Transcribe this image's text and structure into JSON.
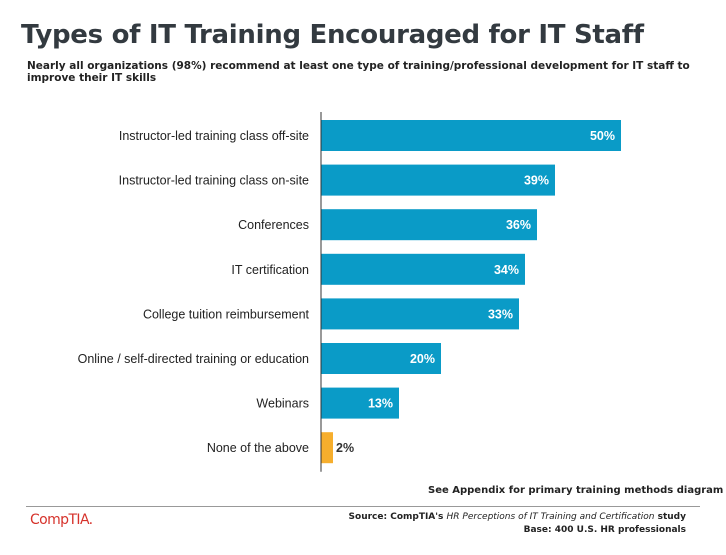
{
  "title": "Types of IT Training Encouraged for IT Staff",
  "subtitle": "Nearly all organizations (98%) recommend at least one type of training/professional development for IT staff to improve their IT skills",
  "appendix_note": "See Appendix for primary training methods diagram",
  "logo_text": "CompTIA.",
  "source": {
    "prefix": "Source: CompTIA's ",
    "study_title": "HR Perceptions of IT Training and Certification",
    "suffix": " study",
    "base": "Base: 400 U.S. HR professionals"
  },
  "colors": {
    "bar": "#0a9bc7",
    "highlight_bar": "#f6ae2d",
    "axis": "#333333"
  },
  "chart_data": {
    "type": "bar",
    "orientation": "horizontal",
    "categories": [
      "Instructor-led training class off-site",
      "Instructor-led training class on-site",
      "Conferences",
      "IT certification",
      "College tuition reimbursement",
      "Online / self-directed training or education",
      "Webinars",
      "None of the above"
    ],
    "values": [
      50,
      39,
      36,
      34,
      33,
      20,
      13,
      2
    ],
    "labels": [
      "50%",
      "39%",
      "36%",
      "34%",
      "33%",
      "20%",
      "13%",
      "2%"
    ],
    "xlim": [
      0,
      50
    ],
    "grid": false,
    "legend": "none"
  }
}
